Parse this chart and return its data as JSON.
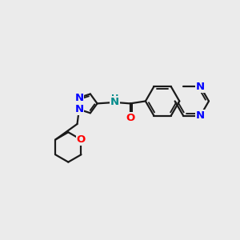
{
  "bg_color": "#ebebeb",
  "bond_color": "#1a1a1a",
  "N_color": "#0000ff",
  "O_color": "#ff0000",
  "NH_color": "#008b8b",
  "lw": 1.6,
  "fs": 9.5,
  "xlim": [
    0,
    10
  ],
  "ylim": [
    0,
    10
  ],
  "BL": 0.72
}
